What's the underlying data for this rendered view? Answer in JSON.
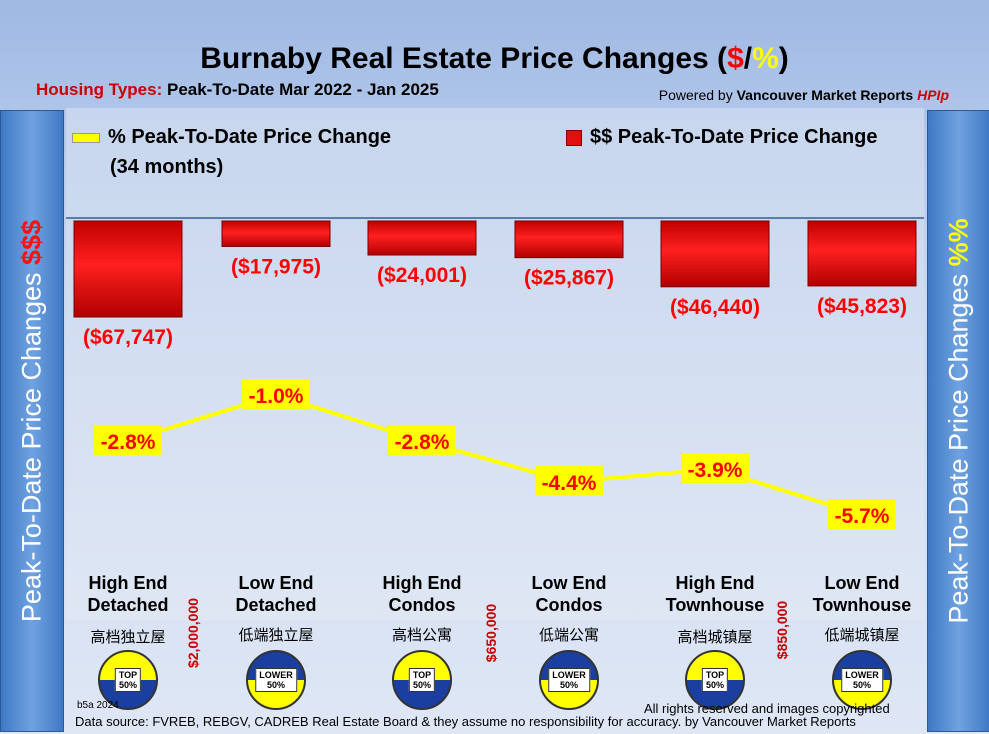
{
  "header": {
    "title_main": "Burnaby Real Estate Price Changes (",
    "title_dollar": "$",
    "title_slash": "/",
    "title_percent": "%",
    "title_end": ")",
    "subtitle_label": "Housing Types:",
    "subtitle_period": "Peak-To-Date Mar 2022 - Jan   2025",
    "powered_prefix": "Powered by",
    "powered_name": "Vancouver Market Reports",
    "powered_hpi": "HPIp"
  },
  "sidebars": {
    "left_text": "Peak-To-Date Price Changes",
    "left_suffix": "$$$",
    "right_text": "Peak-To-Date  Price  Changes",
    "right_suffix": "%%"
  },
  "legend": {
    "percent_label": "% Peak-To-Date Price Change",
    "months_label": "(34  months)",
    "dollar_label": "$$ Peak-To-Date Price Change"
  },
  "colors": {
    "bar": "#e01010",
    "line": "#ffff00",
    "label_bg": "#ffff00",
    "label_text": "#ff0000"
  },
  "chart_data": {
    "type": "bar",
    "categories": [
      "High End Detached",
      "Low End Detached",
      "High End Condos",
      "Low End Condos",
      "High End Townhouse",
      "Low End Townhouse"
    ],
    "series": [
      {
        "name": "$$ Peak-To-Date Price Change",
        "type": "bar",
        "values": [
          -67747,
          -17975,
          -24001,
          -25867,
          -46440,
          -45823
        ],
        "labels": [
          "($67,747)",
          "($17,975)",
          "($24,001)",
          "($25,867)",
          "($46,440)",
          "($45,823)"
        ]
      },
      {
        "name": "% Peak-To-Date Price Change",
        "type": "line",
        "values": [
          -2.8,
          -1.0,
          -2.8,
          -4.4,
          -3.9,
          -5.7
        ],
        "labels": [
          "-2.8%",
          "-1.0%",
          "-2.8%",
          "-4.4%",
          "-3.9%",
          "-5.7%"
        ]
      }
    ],
    "title": "Burnaby Real Estate Price Changes ($/%)"
  },
  "categories": [
    {
      "line1": "High End",
      "line2": "Detached",
      "chinese": "高档独立屋",
      "badge": "TOP\n50%",
      "tier": "top"
    },
    {
      "line1": "Low End",
      "line2": "Detached",
      "chinese": "低端独立屋",
      "badge": "LOWER\n50%",
      "tier": "lower"
    },
    {
      "line1": "High End",
      "line2": "Condos",
      "chinese": "高档公寓",
      "badge": "TOP\n50%",
      "tier": "top"
    },
    {
      "line1": "Low End",
      "line2": "Condos",
      "chinese": "低端公寓",
      "badge": "LOWER\n50%",
      "tier": "lower"
    },
    {
      "line1": "High End",
      "line2": "Townhouse",
      "chinese": "高档城镇屋",
      "badge": "TOP\n50%",
      "tier": "top"
    },
    {
      "line1": "Low End",
      "line2": "Townhouse",
      "chinese": "低端城镇屋",
      "badge": "LOWER\n50%",
      "tier": "lower"
    }
  ],
  "price_thresholds": [
    "$2,000,000",
    "$650,000",
    "$850,000"
  ],
  "footer": {
    "version": "b5a 2024",
    "rights": "All rights reserved and  images copyrighted",
    "source": "Data source: FVREB, REBGV, CADREB Real Estate Board & they assume no responsibility for accuracy. by Vancouver Market Reports"
  }
}
